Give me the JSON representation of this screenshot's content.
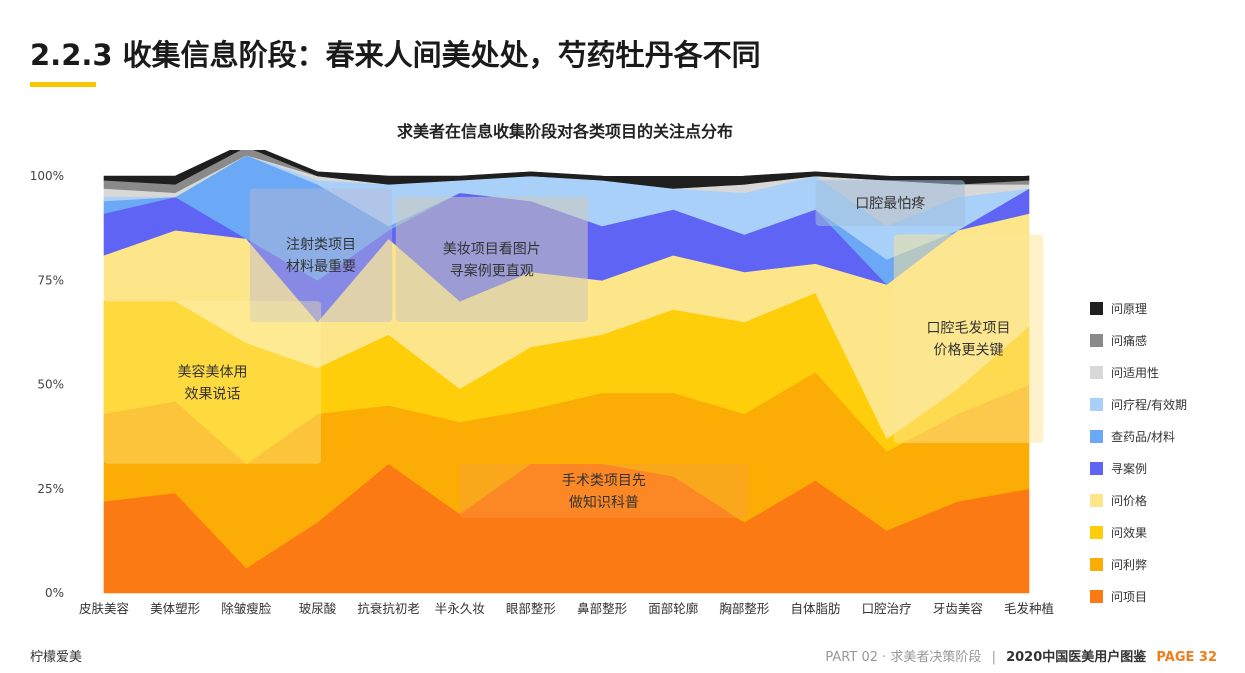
{
  "header": {
    "title": "2.2.3 收集信息阶段：春来人间美处处，芍药牡丹各不同"
  },
  "chart_data": {
    "type": "area",
    "title": "求美者在信息收集阶段对各类项目的关注点分布",
    "categories": [
      "皮肤美容",
      "美体塑形",
      "除皱瘦脸",
      "玻尿酸",
      "抗衰抗初老",
      "半永久妆",
      "眼部整形",
      "鼻部整形",
      "面部轮廓",
      "胸部整形",
      "自体脂肪",
      "口腔治疗",
      "牙齿美容",
      "毛发种植"
    ],
    "ylim": [
      0,
      100
    ],
    "y_ticks": [
      "0%",
      "25%",
      "50%",
      "75%",
      "100%"
    ],
    "series": [
      {
        "name": "问项目",
        "color": "#fc7a14",
        "values": [
          22,
          24,
          6,
          17,
          31,
          19,
          31,
          31,
          28,
          17,
          27,
          15,
          22,
          25
        ]
      },
      {
        "name": "问利弊",
        "color": "#fbad05",
        "values": [
          21,
          22,
          25,
          26,
          14,
          22,
          13,
          17,
          20,
          26,
          26,
          19,
          21,
          25
        ]
      },
      {
        "name": "问效果",
        "color": "#fece0b",
        "values": [
          27,
          24,
          29,
          11,
          17,
          8,
          15,
          14,
          20,
          22,
          19,
          3,
          6,
          14
        ]
      },
      {
        "name": "问价格",
        "color": "#fde68a",
        "values": [
          11,
          17,
          25,
          11,
          23,
          21,
          18,
          13,
          13,
          12,
          7,
          37,
          38,
          27
        ]
      },
      {
        "name": "寻案例",
        "color": "#6064f4",
        "values": [
          10,
          8,
          0,
          10,
          2,
          26,
          17,
          13,
          11,
          9,
          13,
          0,
          0,
          6
        ]
      },
      {
        "name": "查药品/材料",
        "color": "#6ba8f5",
        "values": [
          3,
          0,
          20,
          23,
          1,
          0,
          0,
          0,
          0,
          0,
          0,
          6,
          0,
          0
        ]
      },
      {
        "name": "问疗程/有效期",
        "color": "#a9d0f9",
        "values": [
          1,
          0,
          0,
          1,
          10,
          3,
          6,
          11,
          5,
          10,
          8,
          8,
          8,
          0
        ]
      },
      {
        "name": "问适用性",
        "color": "#d8d8d8",
        "values": [
          2,
          1,
          0,
          1,
          0,
          0,
          0,
          0,
          0,
          2,
          0,
          11,
          3,
          1
        ]
      },
      {
        "name": "问痛感",
        "color": "#8a8a8a",
        "values": [
          2,
          2,
          2,
          0,
          0,
          0,
          0,
          0,
          0,
          0,
          0,
          0,
          0,
          1
        ]
      },
      {
        "name": "问原理",
        "color": "#1f1f1f",
        "values": [
          1,
          2,
          1,
          1,
          2,
          1,
          1,
          1,
          1,
          2,
          1,
          1,
          1,
          1
        ]
      }
    ],
    "annotations": [
      {
        "text": "注射类项目\n材料最重要",
        "fill": "rgba(185,185,210,0.45)",
        "x0": 2.05,
        "x1": 4.05,
        "y0": 65,
        "y1": 97
      },
      {
        "text": "美妆项目看图片\n寻案例更直观",
        "fill": "rgba(205,200,185,0.55)",
        "x0": 4.1,
        "x1": 6.8,
        "y0": 65,
        "y1": 95
      },
      {
        "text": "美容美体用\n效果说话",
        "fill": "rgba(255,240,160,0.35)",
        "x0": 0.0,
        "x1": 3.05,
        "y0": 31,
        "y1": 70
      },
      {
        "text": "手术类项目先\n做知识科普",
        "fill": "rgba(250,160,70,0.35)",
        "x0": 5.0,
        "x1": 9.05,
        "y0": 18,
        "y1": 31
      },
      {
        "text": "口腔最怕疼",
        "fill": "rgba(160,190,220,0.55)",
        "x0": 10.0,
        "x1": 12.1,
        "y0": 88,
        "y1": 99
      },
      {
        "text": "口腔毛发项目\n价格更关键",
        "fill": "rgba(253,230,150,0.5)",
        "x0": 11.1,
        "x1": 13.2,
        "y0": 36,
        "y1": 86
      }
    ]
  },
  "footer": {
    "brand": "柠檬爱美",
    "part": "PART 02 · 求美者决策阶段",
    "separator": "|",
    "book": "2020中国医美用户图鉴",
    "page": "PAGE 32"
  }
}
